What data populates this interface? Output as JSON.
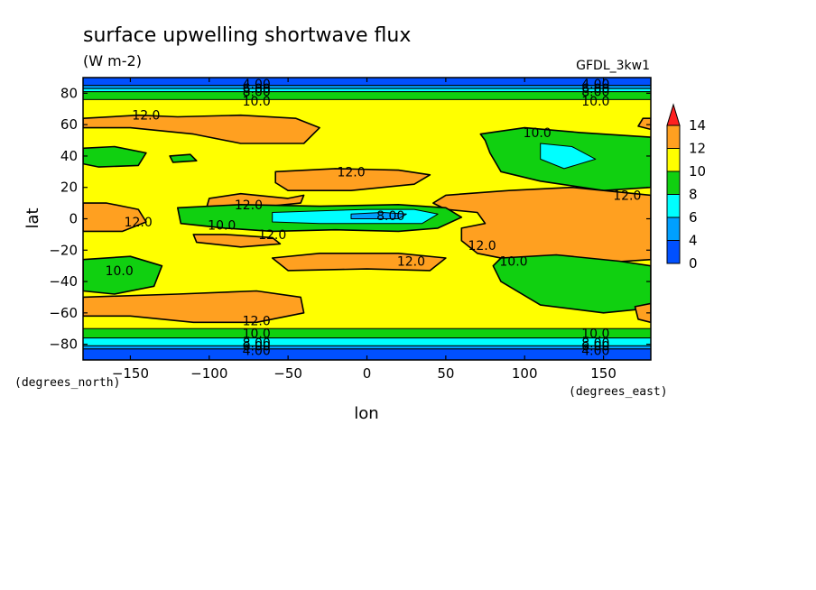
{
  "chart_data": {
    "type": "heatmap",
    "title": "surface upwelling shortwave flux",
    "units": "(W m-2)",
    "dataset": "GFDL_3kw1",
    "xlabel": "lon",
    "ylabel": "lat",
    "x_units": "(degrees_east)",
    "y_units": "(degrees_north)",
    "xlim": [
      -180,
      180
    ],
    "ylim": [
      -90,
      90
    ],
    "x_ticks": [
      -150,
      -100,
      -50,
      0,
      50,
      100,
      150
    ],
    "y_ticks": [
      -80,
      -60,
      -40,
      -20,
      0,
      20,
      40,
      60,
      80
    ],
    "x_tick_labels": [
      "−150",
      "−100",
      "−50",
      "0",
      "50",
      "100",
      "150"
    ],
    "y_tick_labels": [
      "−80",
      "−60",
      "−40",
      "−20",
      "0",
      "20",
      "40",
      "60",
      "80"
    ],
    "colorbar": {
      "levels": [
        0,
        4,
        6,
        8,
        10,
        12,
        14
      ],
      "tick_labels": [
        "0",
        "4",
        "6",
        "8",
        "10",
        "12",
        "14"
      ],
      "colors": [
        "#0050ff",
        "#00a0ff",
        "#00ffff",
        "#10d010",
        "#ffff00",
        "#ffa020"
      ],
      "overflow_color": "#ff2020"
    },
    "background_color": "#ffff00",
    "bands": [
      {
        "y0": 85,
        "y1": 90,
        "level": 0
      },
      {
        "y0": 83,
        "y1": 85,
        "level": 1
      },
      {
        "y0": 81,
        "y1": 83,
        "level": 2
      },
      {
        "y0": 76,
        "y1": 81,
        "level": 3
      },
      {
        "y0": -76,
        "y1": -70,
        "level": 3
      },
      {
        "y0": -81,
        "y1": -76,
        "level": 2
      },
      {
        "y0": -83,
        "y1": -81,
        "level": 1
      },
      {
        "y0": -90,
        "y1": -83,
        "level": 0
      }
    ],
    "regions": [
      {
        "level": 5,
        "points": [
          [
            -180,
            64
          ],
          [
            -145,
            66
          ],
          [
            -120,
            65
          ],
          [
            -80,
            66
          ],
          [
            -45,
            64
          ],
          [
            -30,
            58
          ],
          [
            -40,
            48
          ],
          [
            -80,
            48
          ],
          [
            -110,
            54
          ],
          [
            -150,
            58
          ],
          [
            -180,
            58
          ]
        ]
      },
      {
        "level": 5,
        "points": [
          [
            175,
            64
          ],
          [
            180,
            64
          ],
          [
            180,
            57
          ],
          [
            172,
            59
          ]
        ]
      },
      {
        "level": 3,
        "points": [
          [
            -180,
            45
          ],
          [
            -160,
            46
          ],
          [
            -140,
            42
          ],
          [
            -145,
            34
          ],
          [
            -170,
            33
          ],
          [
            -180,
            35
          ]
        ]
      },
      {
        "level": 3,
        "points": [
          [
            -125,
            40
          ],
          [
            -112,
            41
          ],
          [
            -108,
            37
          ],
          [
            -123,
            36
          ]
        ]
      },
      {
        "level": 5,
        "points": [
          [
            -58,
            30
          ],
          [
            -20,
            32
          ],
          [
            20,
            31
          ],
          [
            40,
            28
          ],
          [
            30,
            22
          ],
          [
            -10,
            18
          ],
          [
            -50,
            18
          ],
          [
            -58,
            23
          ]
        ]
      },
      {
        "level": 3,
        "points": [
          [
            72,
            54
          ],
          [
            100,
            58
          ],
          [
            135,
            55
          ],
          [
            180,
            52
          ],
          [
            180,
            20
          ],
          [
            150,
            18
          ],
          [
            110,
            24
          ],
          [
            85,
            30
          ],
          [
            78,
            42
          ],
          [
            75,
            50
          ]
        ]
      },
      {
        "level": 2,
        "points": [
          [
            110,
            48
          ],
          [
            130,
            46
          ],
          [
            145,
            38
          ],
          [
            125,
            32
          ],
          [
            110,
            38
          ]
        ]
      },
      {
        "level": 5,
        "points": [
          [
            50,
            15
          ],
          [
            90,
            18
          ],
          [
            130,
            20
          ],
          [
            180,
            15
          ],
          [
            180,
            -26
          ],
          [
            150,
            -28
          ],
          [
            110,
            -30
          ],
          [
            70,
            -22
          ],
          [
            60,
            -14
          ],
          [
            60,
            -6
          ],
          [
            75,
            -3
          ],
          [
            70,
            4
          ],
          [
            50,
            6
          ],
          [
            42,
            10
          ]
        ]
      },
      {
        "level": 5,
        "points": [
          [
            -180,
            10
          ],
          [
            -165,
            10
          ],
          [
            -145,
            6
          ],
          [
            -140,
            -2
          ],
          [
            -155,
            -8
          ],
          [
            -180,
            -8
          ]
        ]
      },
      {
        "level": 5,
        "points": [
          [
            -100,
            13
          ],
          [
            -80,
            16
          ],
          [
            -50,
            13
          ],
          [
            -40,
            15
          ],
          [
            -42,
            10
          ],
          [
            -62,
            8
          ],
          [
            -80,
            6
          ],
          [
            -102,
            6
          ]
        ]
      },
      {
        "level": 5,
        "points": [
          [
            -110,
            -10
          ],
          [
            -90,
            -10
          ],
          [
            -60,
            -12
          ],
          [
            -55,
            -16
          ],
          [
            -80,
            -18
          ],
          [
            -108,
            -15
          ]
        ]
      },
      {
        "level": 3,
        "points": [
          [
            -120,
            7
          ],
          [
            -80,
            9
          ],
          [
            -30,
            8
          ],
          [
            20,
            9
          ],
          [
            50,
            7
          ],
          [
            60,
            1
          ],
          [
            45,
            -6
          ],
          [
            20,
            -8
          ],
          [
            -20,
            -7
          ],
          [
            -60,
            -8
          ],
          [
            -90,
            -6
          ],
          [
            -118,
            -3
          ]
        ]
      },
      {
        "level": 2,
        "points": [
          [
            -60,
            4
          ],
          [
            -30,
            5
          ],
          [
            0,
            6
          ],
          [
            30,
            6
          ],
          [
            45,
            3
          ],
          [
            35,
            -3
          ],
          [
            0,
            -3
          ],
          [
            -30,
            -3
          ],
          [
            -60,
            -2
          ]
        ]
      },
      {
        "level": 1,
        "points": [
          [
            -10,
            3
          ],
          [
            10,
            4
          ],
          [
            25,
            3
          ],
          [
            20,
            0
          ],
          [
            5,
            0
          ],
          [
            -10,
            0
          ]
        ]
      },
      {
        "level": 5,
        "points": [
          [
            -60,
            -25
          ],
          [
            -30,
            -22
          ],
          [
            20,
            -22
          ],
          [
            50,
            -25
          ],
          [
            40,
            -33
          ],
          [
            0,
            -32
          ],
          [
            -50,
            -33
          ]
        ]
      },
      {
        "level": 3,
        "points": [
          [
            -180,
            -26
          ],
          [
            -150,
            -24
          ],
          [
            -130,
            -30
          ],
          [
            -135,
            -43
          ],
          [
            -160,
            -48
          ],
          [
            -180,
            -46
          ]
        ]
      },
      {
        "level": 3,
        "points": [
          [
            85,
            -25
          ],
          [
            120,
            -23
          ],
          [
            160,
            -27
          ],
          [
            180,
            -30
          ],
          [
            180,
            -57
          ],
          [
            150,
            -60
          ],
          [
            110,
            -55
          ],
          [
            85,
            -40
          ],
          [
            80,
            -30
          ]
        ]
      },
      {
        "level": 5,
        "points": [
          [
            -180,
            -50
          ],
          [
            -120,
            -48
          ],
          [
            -70,
            -46
          ],
          [
            -42,
            -50
          ],
          [
            -40,
            -60
          ],
          [
            -70,
            -66
          ],
          [
            -110,
            -66
          ],
          [
            -150,
            -62
          ],
          [
            -180,
            -62
          ]
        ]
      },
      {
        "level": 5,
        "points": [
          [
            170,
            -56
          ],
          [
            180,
            -54
          ],
          [
            180,
            -66
          ],
          [
            172,
            -64
          ]
        ]
      }
    ],
    "contour_labels": [
      {
        "text": "4.00",
        "x": -70,
        "y": 86
      },
      {
        "text": "6.00",
        "x": -70,
        "y": 83
      },
      {
        "text": "8.00",
        "x": -70,
        "y": 81
      },
      {
        "text": "10.0",
        "x": -70,
        "y": 75
      },
      {
        "text": "4.00",
        "x": 145,
        "y": 86
      },
      {
        "text": "6.00",
        "x": 145,
        "y": 83
      },
      {
        "text": "8.00",
        "x": 145,
        "y": 81
      },
      {
        "text": "10.0",
        "x": 145,
        "y": 75
      },
      {
        "text": "12.0",
        "x": -140,
        "y": 66
      },
      {
        "text": "10.0",
        "x": 108,
        "y": 55
      },
      {
        "text": "12.0",
        "x": -10,
        "y": 30
      },
      {
        "text": "12.0",
        "x": 165,
        "y": 15
      },
      {
        "text": "12.0",
        "x": -75,
        "y": 9
      },
      {
        "text": "12.0",
        "x": -145,
        "y": -2
      },
      {
        "text": "10.0",
        "x": -92,
        "y": -4
      },
      {
        "text": "8.00",
        "x": 15,
        "y": 2
      },
      {
        "text": "12.0",
        "x": -60,
        "y": -10
      },
      {
        "text": "12.0",
        "x": 73,
        "y": -17
      },
      {
        "text": "12.0",
        "x": 28,
        "y": -27
      },
      {
        "text": "10.0",
        "x": 93,
        "y": -27
      },
      {
        "text": "10.0",
        "x": -157,
        "y": -33
      },
      {
        "text": "12.0",
        "x": -70,
        "y": -65
      },
      {
        "text": "10.0",
        "x": -70,
        "y": -73
      },
      {
        "text": "8.00",
        "x": -70,
        "y": -79
      },
      {
        "text": "6.00",
        "x": -70,
        "y": -81
      },
      {
        "text": "4.00",
        "x": -70,
        "y": -84
      },
      {
        "text": "10.0",
        "x": 145,
        "y": -73
      },
      {
        "text": "8.00",
        "x": 145,
        "y": -79
      },
      {
        "text": "6.00",
        "x": 145,
        "y": -81
      },
      {
        "text": "4.00",
        "x": 145,
        "y": -84
      }
    ]
  }
}
